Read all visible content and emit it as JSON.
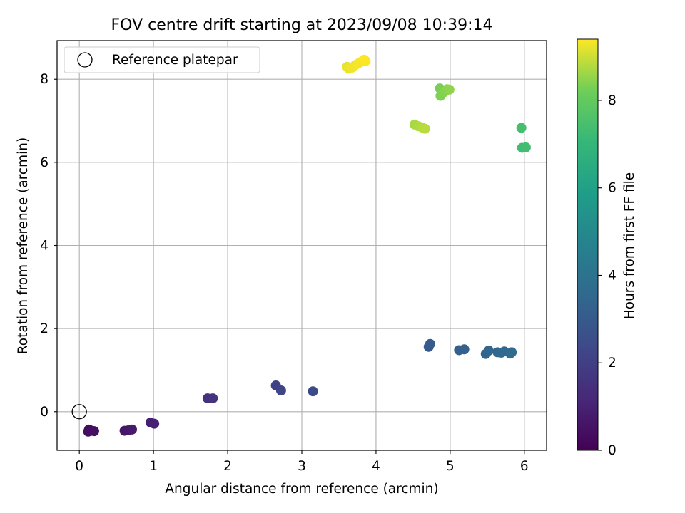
{
  "chart_data": {
    "type": "scatter",
    "title": "FOV centre drift starting at 2023/09/08 10:39:14",
    "xlabel": "Angular distance from reference (arcmin)",
    "ylabel": "Rotation from reference (arcmin)",
    "xlim": [
      -0.3,
      6.3
    ],
    "ylim": [
      -0.93,
      8.93
    ],
    "xticks": [
      0,
      1,
      2,
      3,
      4,
      5,
      6
    ],
    "yticks": [
      0,
      2,
      4,
      6,
      8
    ],
    "grid": true,
    "legend": {
      "placement": "top-left",
      "entries": [
        "Reference platepar"
      ]
    },
    "reference_point": {
      "x": 0,
      "y": 0,
      "label": "Reference platepar"
    },
    "colorbar": {
      "label": "Hours from first FF file",
      "colormap": "viridis",
      "range": [
        0,
        9.4
      ],
      "ticks": [
        0,
        2,
        4,
        6,
        8
      ]
    },
    "points": [
      {
        "x": 0.13,
        "y": -0.43,
        "c": 0.3
      },
      {
        "x": 0.12,
        "y": -0.48,
        "c": 0.35
      },
      {
        "x": 0.17,
        "y": -0.46,
        "c": 0.4
      },
      {
        "x": 0.2,
        "y": -0.47,
        "c": 0.45
      },
      {
        "x": 0.61,
        "y": -0.46,
        "c": 0.65
      },
      {
        "x": 0.66,
        "y": -0.45,
        "c": 0.7
      },
      {
        "x": 0.71,
        "y": -0.43,
        "c": 0.75
      },
      {
        "x": 0.96,
        "y": -0.26,
        "c": 0.9
      },
      {
        "x": 1.01,
        "y": -0.29,
        "c": 0.95
      },
      {
        "x": 1.73,
        "y": 0.32,
        "c": 1.5
      },
      {
        "x": 1.8,
        "y": 0.32,
        "c": 1.55
      },
      {
        "x": 2.65,
        "y": 0.63,
        "c": 2.1
      },
      {
        "x": 2.72,
        "y": 0.51,
        "c": 2.2
      },
      {
        "x": 3.15,
        "y": 0.49,
        "c": 2.4
      },
      {
        "x": 4.71,
        "y": 1.56,
        "c": 3.0
      },
      {
        "x": 4.73,
        "y": 1.63,
        "c": 3.05
      },
      {
        "x": 5.12,
        "y": 1.48,
        "c": 3.2
      },
      {
        "x": 5.19,
        "y": 1.5,
        "c": 3.25
      },
      {
        "x": 5.48,
        "y": 1.39,
        "c": 3.4
      },
      {
        "x": 5.52,
        "y": 1.47,
        "c": 3.45
      },
      {
        "x": 5.64,
        "y": 1.43,
        "c": 3.5
      },
      {
        "x": 5.69,
        "y": 1.42,
        "c": 3.55
      },
      {
        "x": 5.73,
        "y": 1.45,
        "c": 3.6
      },
      {
        "x": 5.81,
        "y": 1.4,
        "c": 3.65
      },
      {
        "x": 5.83,
        "y": 1.43,
        "c": 3.7
      },
      {
        "x": 5.96,
        "y": 6.83,
        "c": 7.4
      },
      {
        "x": 5.97,
        "y": 6.35,
        "c": 7.3
      },
      {
        "x": 6.02,
        "y": 6.36,
        "c": 7.35
      },
      {
        "x": 4.86,
        "y": 7.78,
        "c": 8.3
      },
      {
        "x": 4.87,
        "y": 7.6,
        "c": 8.35
      },
      {
        "x": 4.92,
        "y": 7.69,
        "c": 8.4
      },
      {
        "x": 4.96,
        "y": 7.76,
        "c": 8.45
      },
      {
        "x": 4.99,
        "y": 7.75,
        "c": 8.5
      },
      {
        "x": 4.52,
        "y": 6.91,
        "c": 8.7
      },
      {
        "x": 4.57,
        "y": 6.87,
        "c": 8.75
      },
      {
        "x": 4.62,
        "y": 6.84,
        "c": 8.8
      },
      {
        "x": 4.66,
        "y": 6.81,
        "c": 8.85
      },
      {
        "x": 3.61,
        "y": 8.3,
        "c": 9.2
      },
      {
        "x": 3.63,
        "y": 8.26,
        "c": 9.25
      },
      {
        "x": 3.68,
        "y": 8.28,
        "c": 9.3
      },
      {
        "x": 3.72,
        "y": 8.34,
        "c": 9.3
      },
      {
        "x": 3.76,
        "y": 8.38,
        "c": 9.35
      },
      {
        "x": 3.8,
        "y": 8.42,
        "c": 9.35
      },
      {
        "x": 3.84,
        "y": 8.47,
        "c": 9.4
      },
      {
        "x": 3.86,
        "y": 8.44,
        "c": 9.4
      }
    ]
  }
}
